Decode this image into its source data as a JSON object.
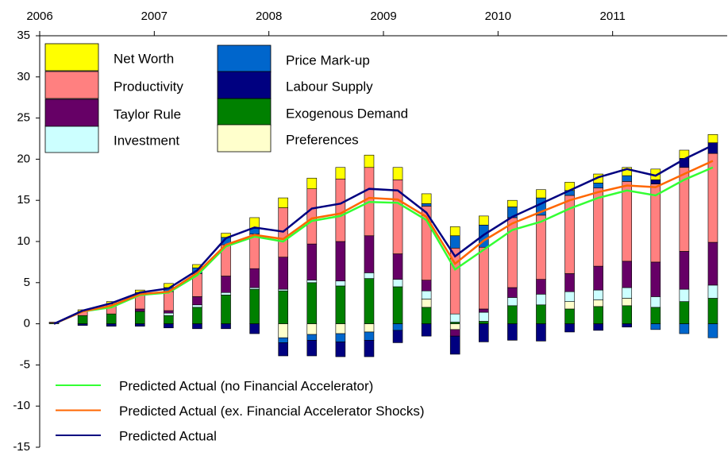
{
  "chart_data": {
    "type": "bar",
    "categories": [
      "2006",
      null,
      null,
      null,
      "2007",
      null,
      null,
      null,
      "2008",
      null,
      null,
      null,
      "2009",
      null,
      null,
      null,
      "2010",
      null,
      null,
      null,
      "2011",
      null,
      null,
      null
    ],
    "ylim": [
      -15,
      35
    ],
    "yticks": [
      -15,
      -10,
      -5,
      0,
      5,
      10,
      15,
      20,
      25,
      30,
      35
    ],
    "series": [
      {
        "name": "Exogenous Demand",
        "color": "#008000",
        "values": [
          0.1,
          1.0,
          1.2,
          1.5,
          1.0,
          2.0,
          3.5,
          4.2,
          4.0,
          5.0,
          4.6,
          5.5,
          4.5,
          2.0,
          0.2,
          0.3,
          2.2,
          2.3,
          1.8,
          2.1,
          2.2,
          2.0,
          2.7,
          3.1
        ]
      },
      {
        "name": "Preferences",
        "color": "#ffffcc",
        "values": [
          0,
          0,
          0,
          0,
          0,
          0,
          0,
          0,
          -1.7,
          -1.3,
          -1.2,
          -1.0,
          0,
          1.0,
          -0.7,
          0,
          0,
          0,
          0.9,
          0.8,
          0.9,
          0,
          0,
          0
        ]
      },
      {
        "name": "Investment",
        "color": "#ccffff",
        "values": [
          0,
          0,
          0,
          0,
          0.3,
          0.3,
          0.3,
          0.2,
          0.2,
          0.3,
          0.6,
          0.7,
          0.9,
          1.0,
          1.0,
          1.1,
          1.0,
          1.3,
          1.2,
          1.2,
          1.3,
          1.3,
          1.5,
          1.6
        ]
      },
      {
        "name": "Taylor Rule",
        "color": "#660066",
        "values": [
          0,
          0,
          0,
          0.3,
          0.3,
          1.0,
          2.0,
          2.3,
          3.9,
          4.4,
          4.8,
          4.5,
          3.1,
          1.3,
          -0.8,
          0.4,
          1.2,
          1.8,
          2.2,
          2.9,
          3.2,
          4.2,
          4.6,
          5.2
        ]
      },
      {
        "name": "Productivity",
        "color": "#ff8080",
        "values": [
          0.1,
          0.5,
          1.2,
          2.0,
          2.3,
          2.8,
          3.8,
          4.2,
          6.0,
          6.7,
          7.6,
          8.3,
          9.0,
          9.0,
          8.0,
          7.5,
          8.5,
          7.8,
          9.5,
          9.5,
          9.7,
          9.5,
          10.2,
          10.8
        ]
      },
      {
        "name": "Price Mark-up",
        "color": "#0066cc",
        "values": [
          0,
          0,
          0,
          0,
          0.5,
          0.7,
          0.9,
          0.7,
          -0.6,
          -0.7,
          -1.0,
          -1.0,
          -0.8,
          0.3,
          1.5,
          2.7,
          1.3,
          2.1,
          0.6,
          0.6,
          0.7,
          -0.7,
          -1.2,
          -1.7
        ]
      },
      {
        "name": "Labour Supply",
        "color": "#000080",
        "values": [
          0,
          -0.2,
          -0.3,
          -0.3,
          -0.5,
          -0.6,
          -0.6,
          -1.2,
          -1.6,
          -1.9,
          -1.8,
          -2.0,
          -1.5,
          -1.5,
          -2.2,
          -2.2,
          -2.0,
          -2.1,
          -1.0,
          -0.8,
          -0.4,
          0.5,
          1.1,
          1.3
        ]
      },
      {
        "name": "Net Worth",
        "color": "#ffff00",
        "values": [
          0,
          0.2,
          0.3,
          0.3,
          0.5,
          0.4,
          0.5,
          1.3,
          1.2,
          1.3,
          1.4,
          1.5,
          1.5,
          1.2,
          1.1,
          1.1,
          0.8,
          1.0,
          1.0,
          1.1,
          1.0,
          1.3,
          1.0,
          1.0
        ]
      }
    ],
    "lines": [
      {
        "name": "Predicted Actual (no Financial Accelerator)",
        "color": "#33ff33",
        "values": [
          0,
          1.5,
          2.0,
          3.5,
          3.8,
          5.9,
          9.4,
          10.6,
          10.0,
          12.5,
          13.1,
          14.8,
          14.7,
          12.6,
          6.6,
          9.0,
          11.4,
          12.4,
          14.0,
          15.3,
          16.2,
          15.6,
          17.5,
          19.0
        ]
      },
      {
        "name": "Predicted Actual (ex. Financial Accelerator Shocks)",
        "color": "#ff6600",
        "values": [
          0,
          1.5,
          2.2,
          3.6,
          3.9,
          6.2,
          9.6,
          10.8,
          10.3,
          12.8,
          13.4,
          15.3,
          15.1,
          13.0,
          7.3,
          10.1,
          12.2,
          13.6,
          15.0,
          16.0,
          16.8,
          16.6,
          18.2,
          19.8
        ]
      },
      {
        "name": "Predicted Actual",
        "color": "#000080",
        "values": [
          0,
          1.6,
          2.5,
          3.8,
          4.3,
          6.5,
          10.4,
          11.7,
          11.2,
          14.0,
          14.6,
          16.4,
          16.2,
          13.5,
          8.2,
          10.8,
          13.0,
          14.6,
          16.2,
          17.8,
          18.8,
          18.0,
          20.0,
          21.7
        ]
      }
    ]
  }
}
